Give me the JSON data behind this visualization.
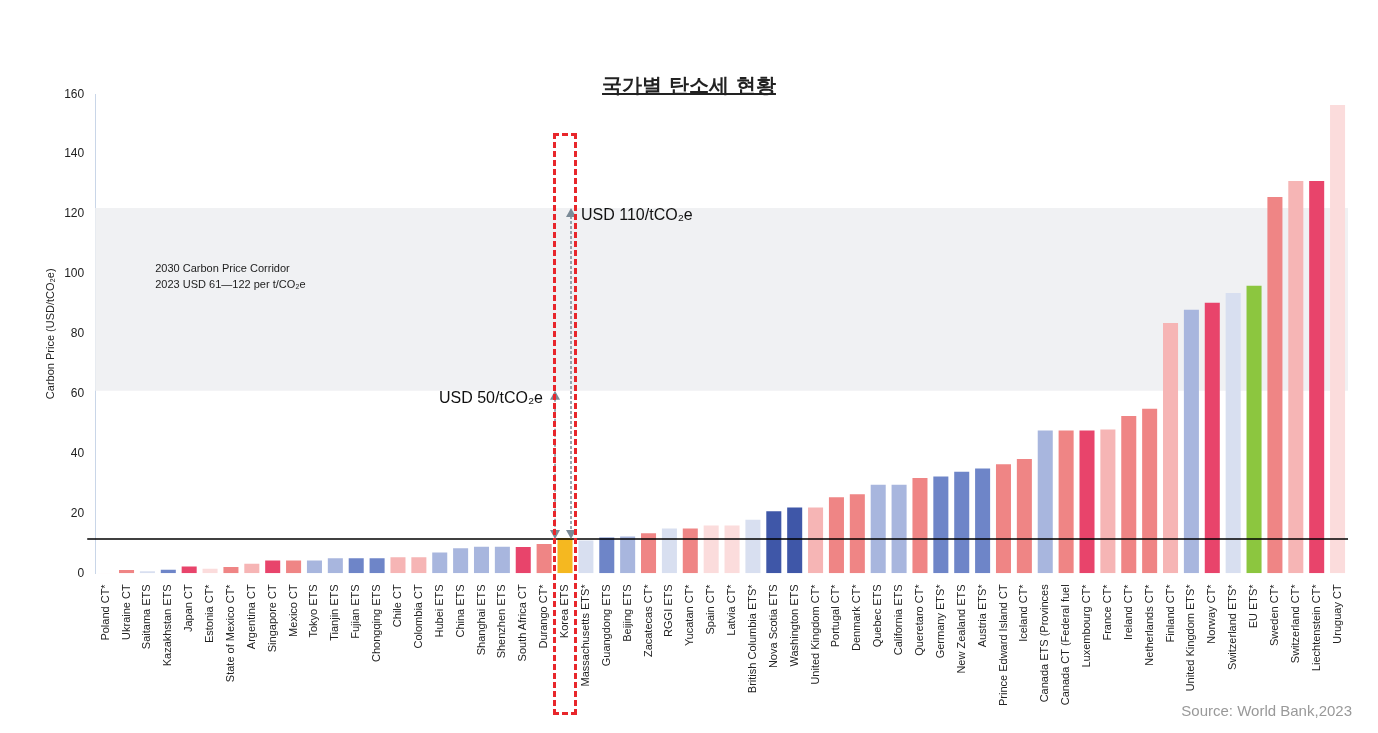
{
  "chart_data": {
    "type": "bar",
    "title": "국가별 탄소세 현황",
    "ylabel": "Carbon Price (USD/tCO₂e)",
    "categories": [
      "Poland CT*",
      "Ukraine CT",
      "Saitama ETS",
      "Kazakhstan ETS",
      "Japan CT",
      "Estonia CT*",
      "State of Mexico CT*",
      "Argentina CT",
      "Singapore CT",
      "Mexico CT",
      "Tokyo ETS",
      "Tianjin ETS",
      "Fujian ETS",
      "Chongqing ETS",
      "Chile CT",
      "Colombia CT",
      "Hubei ETS",
      "China ETS",
      "Shanghai ETS",
      "Shenzhen ETS",
      "South Africa CT",
      "Durango CT*",
      "Korea ETS",
      "Massachusetts ETS*",
      "Guangdong ETS",
      "Beijing ETS",
      "Zacatecas CT*",
      "RGGI ETS",
      "Yucatan CT*",
      "Spain CT*",
      "Latvia CT*",
      "British Columbia ETS*",
      "Nova Scotia ETS",
      "Washington ETS",
      "United Kingdom CT*",
      "Portugal CT*",
      "Denmark CT*",
      "Quebec ETS",
      "California ETS",
      "Queretaro CT*",
      "Germany ETS*",
      "New Zealand ETS",
      "Austria ETS*",
      "Prince Edward Island CT",
      "Iceland CT*",
      "Canada ETS (Provinces",
      "Canada CT (Federal fuel",
      "Luxembourg CT*",
      "France CT*",
      "Ireland CT*",
      "Netherlands CT*",
      "Finland CT*",
      "United Kingdom ETS*",
      "Norway CT*",
      "Switzerland ETS*",
      "EU ETS*",
      "Sweden CT*",
      "Switzerland CT*",
      "Liechtenstein CT*",
      "Uruguay CT"
    ],
    "values": [
      0.1,
      1.1,
      0.7,
      1.2,
      2.3,
      1.5,
      2.1,
      3.2,
      4.3,
      4.3,
      4.3,
      5,
      5,
      5,
      5.4,
      5.4,
      7,
      8.4,
      8.9,
      8.9,
      8.8,
      9.8,
      11.8,
      11,
      12,
      12.3,
      13.4,
      15,
      15,
      16,
      16,
      17.9,
      20.7,
      22,
      22,
      25.4,
      26.4,
      29.6,
      29.6,
      31.8,
      32.3,
      33.9,
      35,
      36.4,
      38.2,
      47.7,
      47.7,
      47.7,
      48,
      52.5,
      55,
      83.6,
      88,
      90.4,
      93.6,
      96,
      125.7,
      131,
      131,
      156.4
    ],
    "colors": [
      "#fbdcdc",
      "#ef8585",
      "#d8dff0",
      "#6e85c8",
      "#e8446b",
      "#fbdcdc",
      "#ef8585",
      "#f6b5b5",
      "#e8446b",
      "#ef8585",
      "#a8b6de",
      "#a8b6de",
      "#6e85c8",
      "#6e85c8",
      "#f6b5b5",
      "#f6b5b5",
      "#a8b6de",
      "#a8b6de",
      "#a8b6de",
      "#a8b6de",
      "#e8446b",
      "#ef8585",
      "#f5b820",
      "#d8dff0",
      "#6e85c8",
      "#a8b6de",
      "#ef8585",
      "#d8dff0",
      "#ef8585",
      "#fbdcdc",
      "#fbdcdc",
      "#d8dff0",
      "#3f57a8",
      "#3f57a8",
      "#f6b5b5",
      "#ef8585",
      "#ef8585",
      "#a8b6de",
      "#a8b6de",
      "#ef8585",
      "#6e85c8",
      "#6e85c8",
      "#6e85c8",
      "#ef8585",
      "#ef8585",
      "#a8b6de",
      "#ef8585",
      "#e8446b",
      "#f6b5b5",
      "#ef8585",
      "#ef8585",
      "#f6b5b5",
      "#a8b6de",
      "#e8446b",
      "#d8dff0",
      "#8cc63f",
      "#ef8585",
      "#f6b5b5",
      "#e8446b",
      "#fbdcdc"
    ],
    "ylim": [
      0,
      160
    ],
    "yticks": [
      0,
      20,
      40,
      60,
      80,
      100,
      120,
      140,
      160
    ],
    "bands": [
      {
        "axis": "y",
        "from": 61,
        "to": 122,
        "label": "2030 Carbon Price Corridor\n2023 USD 61—122 per t/CO₂e",
        "color": "#f0f1f3"
      }
    ],
    "ref_lines": [
      {
        "axis": "y",
        "value": 11.5,
        "color": "#000000"
      }
    ],
    "annotations": [
      {
        "text": "USD 50/tCO₂e",
        "x": "Korea ETS",
        "y": 61
      },
      {
        "text": "USD 110/tCO₂e",
        "x": "Korea ETS",
        "y": 122
      },
      "Source: World Bank,2023"
    ]
  }
}
